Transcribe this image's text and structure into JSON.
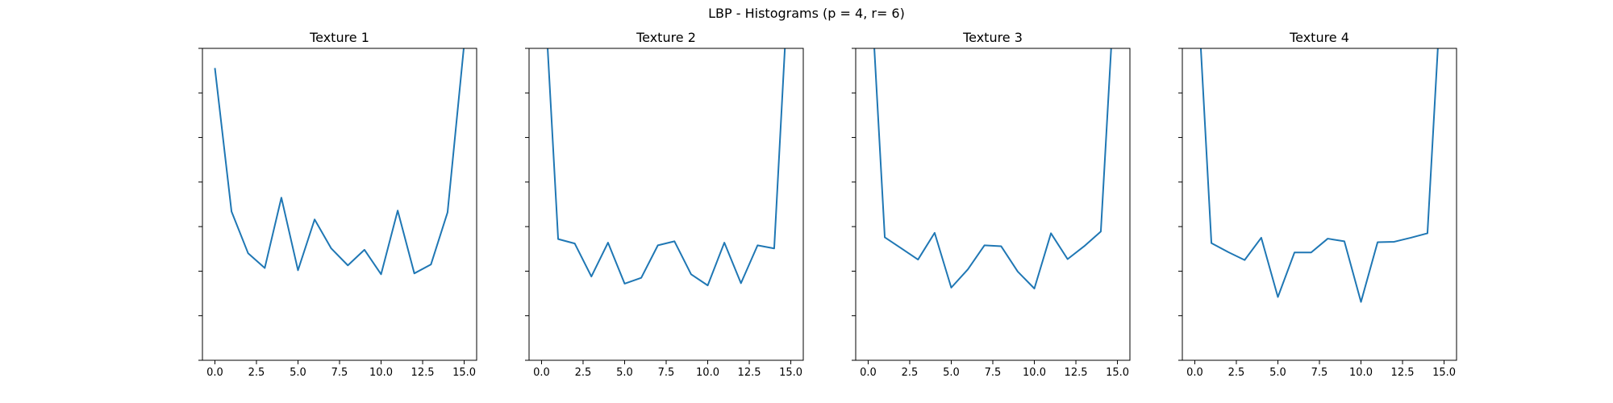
{
  "figure": {
    "title": "LBP - Histograms (p = 4, r= 6)"
  },
  "chart_data": [
    {
      "type": "line",
      "title": "Texture 1",
      "xlabel": "",
      "ylabel": "",
      "x": [
        0,
        1,
        2,
        3,
        4,
        5,
        6,
        7,
        8,
        9,
        10,
        11,
        12,
        13,
        14,
        15
      ],
      "xlim": [
        -0.75,
        15.75
      ],
      "xticks": [
        0.0,
        2.5,
        5.0,
        7.5,
        10.0,
        12.5,
        15.0
      ],
      "xtick_labels": [
        "0.0",
        "2.5",
        "5.0",
        "7.5",
        "10.0",
        "12.5",
        "15.0"
      ],
      "ylim": [
        0,
        7
      ],
      "yticks": [
        0,
        1,
        2,
        3,
        4,
        5,
        6,
        7
      ],
      "ytick_labels_shown": false,
      "grid": false,
      "color": "#1f77b4",
      "series": [
        {
          "values": [
            6.56,
            3.34,
            2.4,
            2.07,
            3.65,
            2.02,
            3.16,
            2.51,
            2.13,
            2.48,
            1.93,
            3.36,
            1.95,
            2.15,
            3.32,
            7.1
          ]
        }
      ]
    },
    {
      "type": "line",
      "title": "Texture 2",
      "xlabel": "",
      "ylabel": "",
      "x": [
        0,
        1,
        2,
        3,
        4,
        5,
        6,
        7,
        8,
        9,
        10,
        11,
        12,
        13,
        14,
        15
      ],
      "xlim": [
        -0.75,
        15.75
      ],
      "xticks": [
        0.0,
        2.5,
        5.0,
        7.5,
        10.0,
        12.5,
        15.0
      ],
      "xtick_labels": [
        "0.0",
        "2.5",
        "5.0",
        "7.5",
        "10.0",
        "12.5",
        "15.0"
      ],
      "ylim": [
        0,
        7
      ],
      "yticks": [
        0,
        1,
        2,
        3,
        4,
        5,
        6,
        7
      ],
      "ytick_labels_shown": false,
      "grid": false,
      "color": "#1f77b4",
      "series": [
        {
          "values": [
            9.5,
            2.72,
            2.62,
            1.88,
            2.64,
            1.72,
            1.85,
            2.58,
            2.67,
            1.93,
            1.68,
            2.64,
            1.73,
            2.58,
            2.51,
            9.5
          ]
        }
      ]
    },
    {
      "type": "line",
      "title": "Texture 3",
      "xlabel": "",
      "ylabel": "",
      "x": [
        0,
        1,
        2,
        3,
        4,
        5,
        6,
        7,
        8,
        9,
        10,
        11,
        12,
        13,
        14,
        15
      ],
      "xlim": [
        -0.75,
        15.75
      ],
      "xticks": [
        0.0,
        2.5,
        5.0,
        7.5,
        10.0,
        12.5,
        15.0
      ],
      "xtick_labels": [
        "0.0",
        "2.5",
        "5.0",
        "7.5",
        "10.0",
        "12.5",
        "15.0"
      ],
      "ylim": [
        0,
        7
      ],
      "yticks": [
        0,
        1,
        2,
        3,
        4,
        5,
        6,
        7
      ],
      "ytick_labels_shown": false,
      "grid": false,
      "color": "#1f77b4",
      "series": [
        {
          "values": [
            9.5,
            2.76,
            2.51,
            2.26,
            2.86,
            1.63,
            2.04,
            2.58,
            2.56,
            1.99,
            1.61,
            2.85,
            2.27,
            2.56,
            2.89,
            9.5
          ]
        }
      ]
    },
    {
      "type": "line",
      "title": "Texture 4",
      "xlabel": "",
      "ylabel": "",
      "x": [
        0,
        1,
        2,
        3,
        4,
        5,
        6,
        7,
        8,
        9,
        10,
        11,
        12,
        13,
        14,
        15
      ],
      "xlim": [
        -0.75,
        15.75
      ],
      "xticks": [
        0.0,
        2.5,
        5.0,
        7.5,
        10.0,
        12.5,
        15.0
      ],
      "xtick_labels": [
        "0.0",
        "2.5",
        "5.0",
        "7.5",
        "10.0",
        "12.5",
        "15.0"
      ],
      "ylim": [
        0,
        7
      ],
      "yticks": [
        0,
        1,
        2,
        3,
        4,
        5,
        6,
        7
      ],
      "ytick_labels_shown": false,
      "grid": false,
      "color": "#1f77b4",
      "series": [
        {
          "values": [
            9.5,
            2.63,
            2.43,
            2.25,
            2.75,
            1.42,
            2.42,
            2.42,
            2.73,
            2.67,
            1.31,
            2.65,
            2.66,
            2.75,
            2.85,
            9.5
          ]
        }
      ]
    }
  ]
}
